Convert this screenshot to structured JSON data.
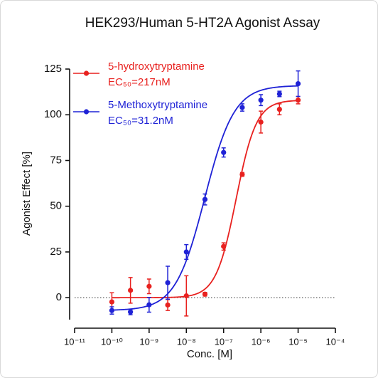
{
  "chart_data": {
    "type": "dose-response",
    "title": "HEK293/Human 5-HT2A Agonist Assay",
    "x_label": "Conc. [M]",
    "y_label": "Agonist Effect [%]",
    "x_scale": "log",
    "xlim": [
      1e-11,
      0.0001
    ],
    "xticks": [
      {
        "value": 1e-11,
        "label": "10⁻¹¹"
      },
      {
        "value": 1e-10,
        "label": "10⁻¹⁰"
      },
      {
        "value": 1e-09,
        "label": "10⁻⁹"
      },
      {
        "value": 1e-08,
        "label": "10⁻⁸"
      },
      {
        "value": 1e-07,
        "label": "10⁻⁷"
      },
      {
        "value": 1e-06,
        "label": "10⁻⁶"
      },
      {
        "value": 1e-05,
        "label": "10⁻⁵"
      },
      {
        "value": 0.0001,
        "label": "10⁻⁴"
      }
    ],
    "ylim": [
      -12,
      125
    ],
    "yticks": [
      0,
      25,
      50,
      75,
      100,
      125
    ],
    "reference_line": 0,
    "x": [
      1e-10,
      3.16e-10,
      1e-09,
      3.16e-09,
      1e-08,
      3.16e-08,
      1e-07,
      3.16e-07,
      1e-06,
      3.16e-06,
      1e-05
    ],
    "series": [
      {
        "name": "5-hydroxytryptamine",
        "annotation": "EC₅₀=217nM",
        "color": "#e8211f",
        "values": [
          -2.3,
          4,
          6.2,
          -4,
          1,
          1.9,
          28,
          67.4,
          96,
          103,
          108
        ],
        "errors": [
          5,
          7,
          4,
          3,
          11,
          1,
          2,
          1,
          6,
          3,
          2
        ],
        "fit": {
          "bottom": 0,
          "top": 108,
          "ec50": 2.17e-07,
          "hill": 1.6
        }
      },
      {
        "name": "5-Methoxytryptamine",
        "annotation": "EC₅₀=31.2nM",
        "color": "#1f22d6",
        "values": [
          -7,
          -7.8,
          -3.9,
          8.2,
          25,
          53.7,
          79.4,
          104,
          108,
          111.4,
          117
        ],
        "errors": [
          2,
          1.5,
          4,
          9,
          4,
          3,
          2.5,
          2,
          3,
          1.5,
          7
        ],
        "fit": {
          "bottom": -7,
          "top": 116,
          "ec50": 3.12e-08,
          "hill": 1.1
        }
      }
    ]
  }
}
